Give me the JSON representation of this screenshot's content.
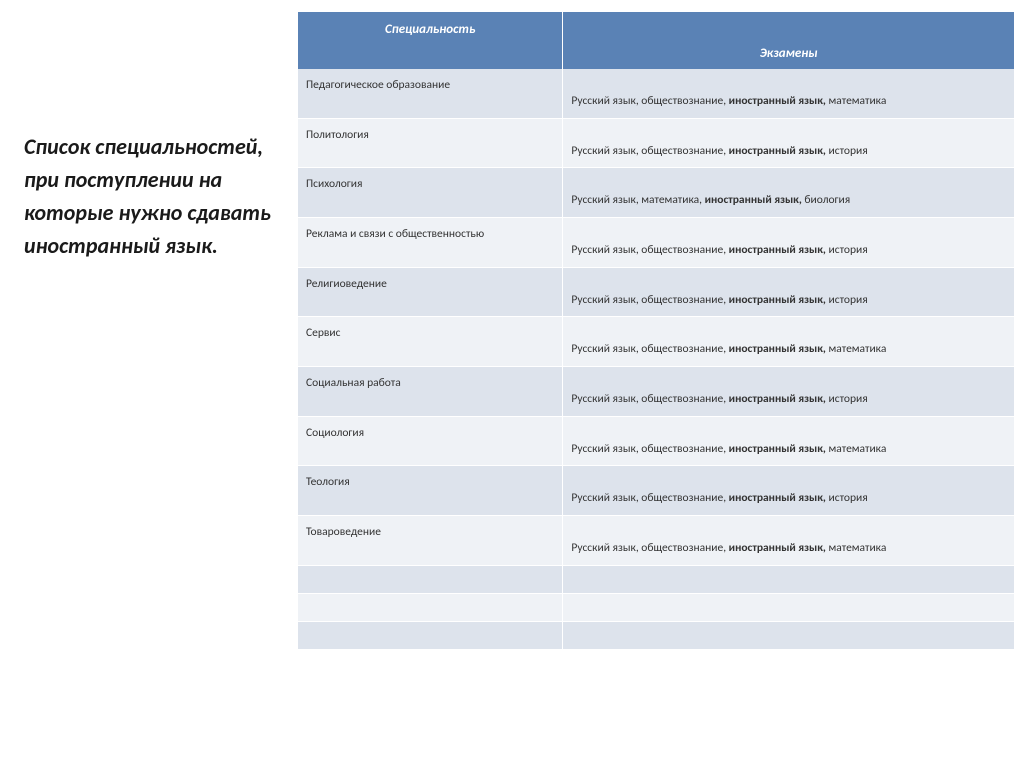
{
  "sidebar": {
    "title": "Список специальностей, при поступлении на которые нужно сдавать иностранный язык."
  },
  "table": {
    "header_bg": "#5a82b5",
    "header_fg": "#ffffff",
    "row_odd_bg": "#dde3ec",
    "row_even_bg": "#eff2f6",
    "columns": [
      "Специальность",
      "Экзамены"
    ],
    "bold_token": "иностранный язык,",
    "rows": [
      {
        "spec": "Педагогическое образование",
        "exams_before": "Русский язык, обществознание, ",
        "exams_after": " математика"
      },
      {
        "spec": "Политология",
        "exams_before": "Русский язык, обществознание, ",
        "exams_after": " история"
      },
      {
        "spec": "Психология",
        "exams_before": "Русский язык, математика, ",
        "exams_after": " биология"
      },
      {
        "spec": "Реклама и связи с общественностью",
        "exams_before": "Русский язык, обществознание, ",
        "exams_after": " история"
      },
      {
        "spec": "Религиоведение",
        "exams_before": "Русский язык, обществознание, ",
        "exams_after": " история"
      },
      {
        "spec": "Сервис",
        "exams_before": "Русский язык, обществознание, ",
        "exams_after": " математика"
      },
      {
        "spec": "Социальная работа",
        "exams_before": "Русский язык, обществознание, ",
        "exams_after": " история"
      },
      {
        "spec": "Социология",
        "exams_before": "Русский язык, обществознание, ",
        "exams_after": " математика"
      },
      {
        "spec": "Теология",
        "exams_before": "Русский язык, обществознание, ",
        "exams_after": " история"
      },
      {
        "spec": "Товароведение",
        "exams_before": "Русский язык, обществознание, ",
        "exams_after": " математика"
      }
    ],
    "empty_rows": 3
  }
}
